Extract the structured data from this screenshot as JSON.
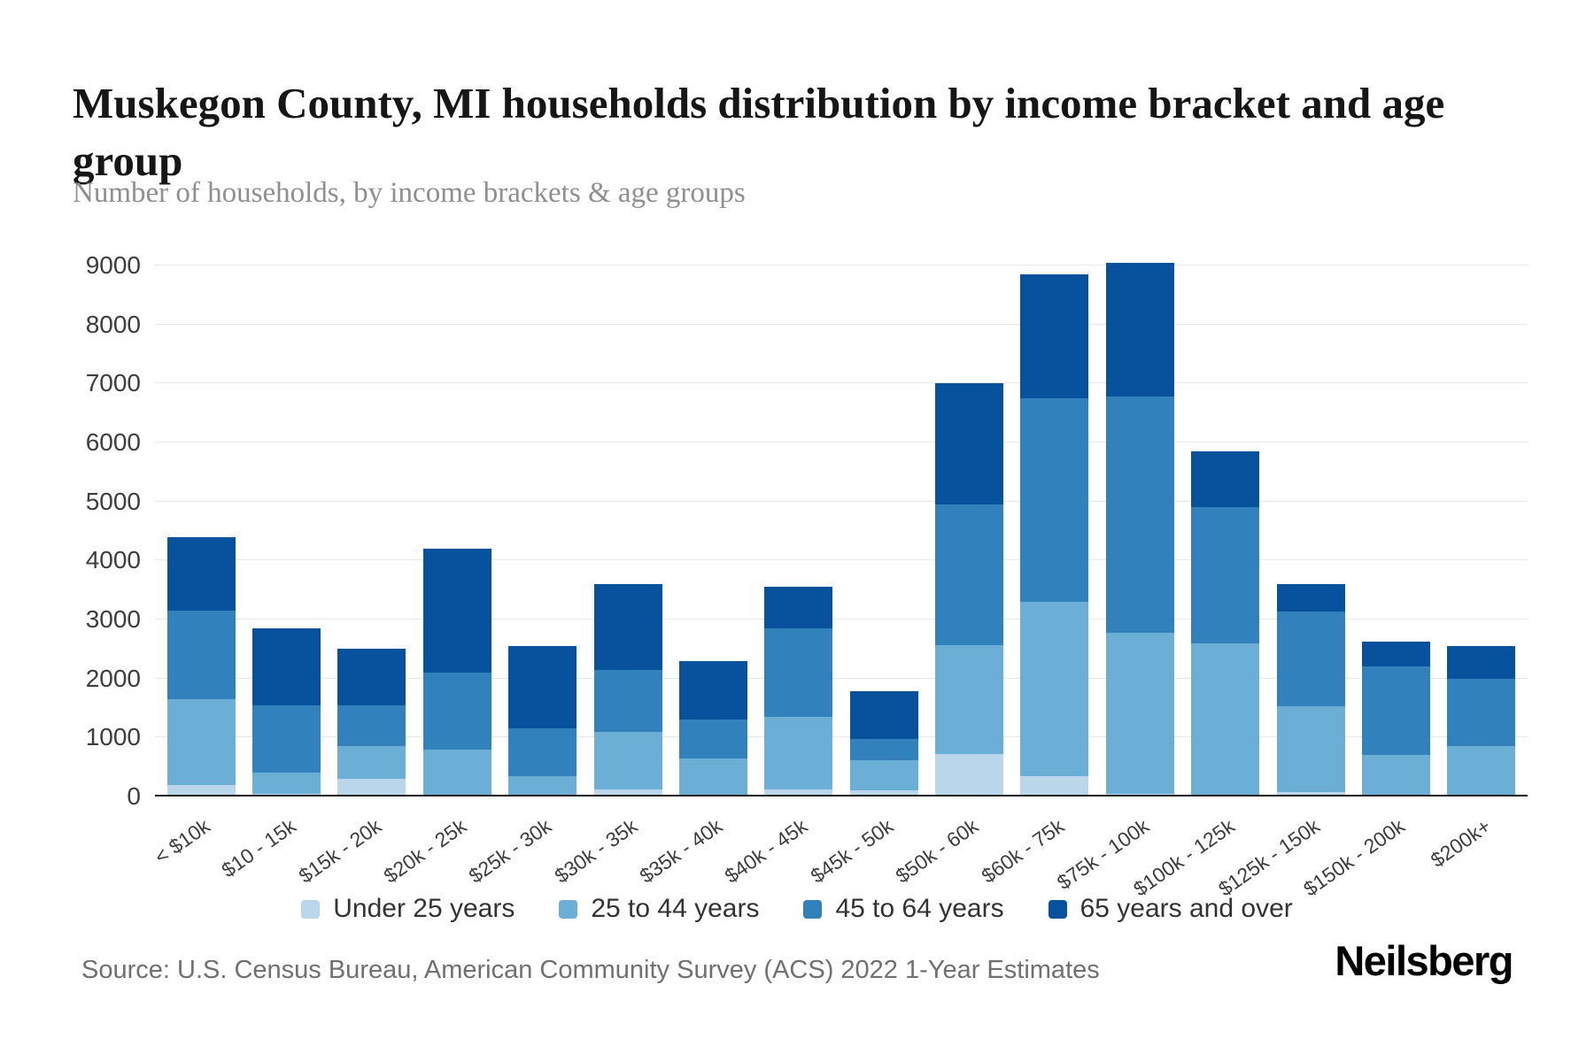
{
  "header": {
    "title": "Muskegon County, MI households distribution by income bracket and age group",
    "subtitle": "Number of households, by income brackets & age groups"
  },
  "footer": {
    "source": "Source: U.S. Census Bureau, American Community Survey (ACS) 2022 1-Year Estimates",
    "brand": "Neilsberg"
  },
  "colors": {
    "under_25": "#b9d6ea",
    "age_25_44": "#6baed6",
    "age_45_64": "#3181bd",
    "age_65_over": "#08519c",
    "gridline": "#e7e7e7",
    "axis_line": "#1c1c1c"
  },
  "chart_data": {
    "type": "bar",
    "stacked": true,
    "grid": true,
    "legend_position": "bottom",
    "title": "Muskegon County, MI households distribution by income bracket and age group",
    "xlabel": "",
    "ylabel": "Number of households",
    "ylim": [
      0,
      9000
    ],
    "ytick_step": 1000,
    "categories": [
      "< $10k",
      "$10 - 15k",
      "$15k - 20k",
      "$20k - 25k",
      "$25k - 30k",
      "$30k - 35k",
      "$35k - 40k",
      "$40k - 45k",
      "$45k - 50k",
      "$50k - 60k",
      "$60k - 75k",
      "$75k - 100k",
      "$100k - 125k",
      "$125k - 150k",
      "$150k - 200k",
      "$200k+"
    ],
    "series": [
      {
        "name": "Under 25 years",
        "color": "#b9d6ea",
        "values": [
          200,
          50,
          300,
          0,
          0,
          120,
          0,
          120,
          100,
          720,
          350,
          50,
          30,
          80,
          0,
          0
        ]
      },
      {
        "name": "25 to 44 years",
        "color": "#6baed6",
        "values": [
          1450,
          350,
          550,
          800,
          350,
          980,
          650,
          1230,
          520,
          1850,
          2950,
          2730,
          2570,
          1450,
          700,
          850
        ]
      },
      {
        "name": "45 to 64 years",
        "color": "#3181bd",
        "values": [
          1500,
          1150,
          700,
          1300,
          800,
          1050,
          650,
          1500,
          360,
          2380,
          3450,
          4000,
          2300,
          1600,
          1500,
          1150
        ]
      },
      {
        "name": "65 years and over",
        "color": "#08519c",
        "values": [
          1250,
          1300,
          950,
          2100,
          1400,
          1450,
          1000,
          700,
          800,
          2050,
          2100,
          2270,
          950,
          470,
          420,
          550
        ]
      }
    ]
  }
}
